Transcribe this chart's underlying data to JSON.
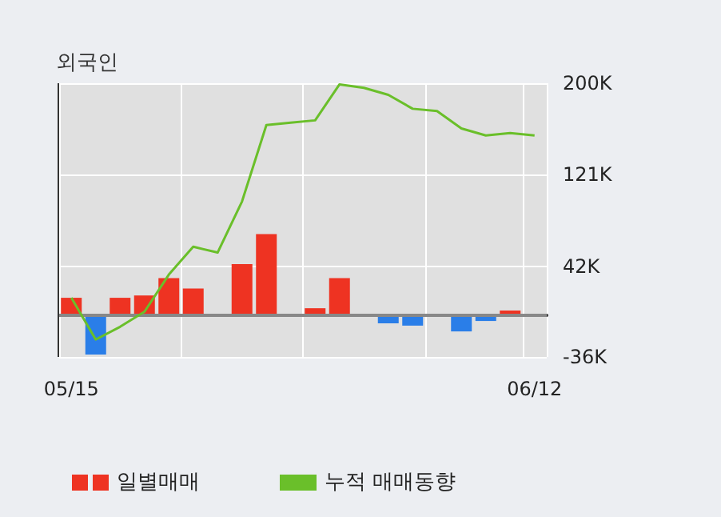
{
  "chart_data": {
    "type": "bar",
    "title": "외국인",
    "categories": [
      "05/15",
      null,
      null,
      null,
      null,
      null,
      null,
      null,
      null,
      null,
      null,
      null,
      null,
      null,
      null,
      null,
      null,
      null,
      null,
      "06/12"
    ],
    "series": [
      {
        "name": "일별매매",
        "colors": [
          "#ee3322",
          "#2a7ee8",
          "#ee3322",
          "#ee3322",
          "#ee3322",
          "#ee3322",
          "#ee3322",
          "#ee3322",
          "#ee3322",
          "#ee3322",
          "#ee3322",
          "#ee3322",
          "#ee3322",
          "#2a7ee8",
          "#2a7ee8",
          "#ee3322",
          "#2a7ee8",
          "#2a7ee8",
          "#ee3322",
          "#ee3322"
        ],
        "values": [
          15000,
          -34000,
          15000,
          17000,
          32000,
          23000,
          0,
          44000,
          70000,
          0,
          6000,
          32000,
          0,
          -7000,
          -9000,
          0,
          -14000,
          -5000,
          4000,
          0
        ]
      },
      {
        "name": "누적 매매동향",
        "type": "line",
        "color": "#6abf2a",
        "values": [
          15000,
          -21000,
          -10000,
          3000,
          35000,
          59000,
          54000,
          98000,
          164000,
          166000,
          168000,
          199000,
          196000,
          190000,
          178000,
          176000,
          161000,
          155000,
          157000,
          155000
        ]
      }
    ],
    "ylim": [
      -36000,
      200000
    ],
    "yticks": [
      {
        "value": 200000,
        "label": "200K"
      },
      {
        "value": 121000,
        "label": "121K"
      },
      {
        "value": 42000,
        "label": "42K"
      },
      {
        "value": -36000,
        "label": "-36K"
      }
    ],
    "ref_lines": [
      {
        "axis": "y",
        "value": 0,
        "color": "#888888"
      }
    ],
    "grid": true,
    "legend": "bottom",
    "marker": "none"
  }
}
